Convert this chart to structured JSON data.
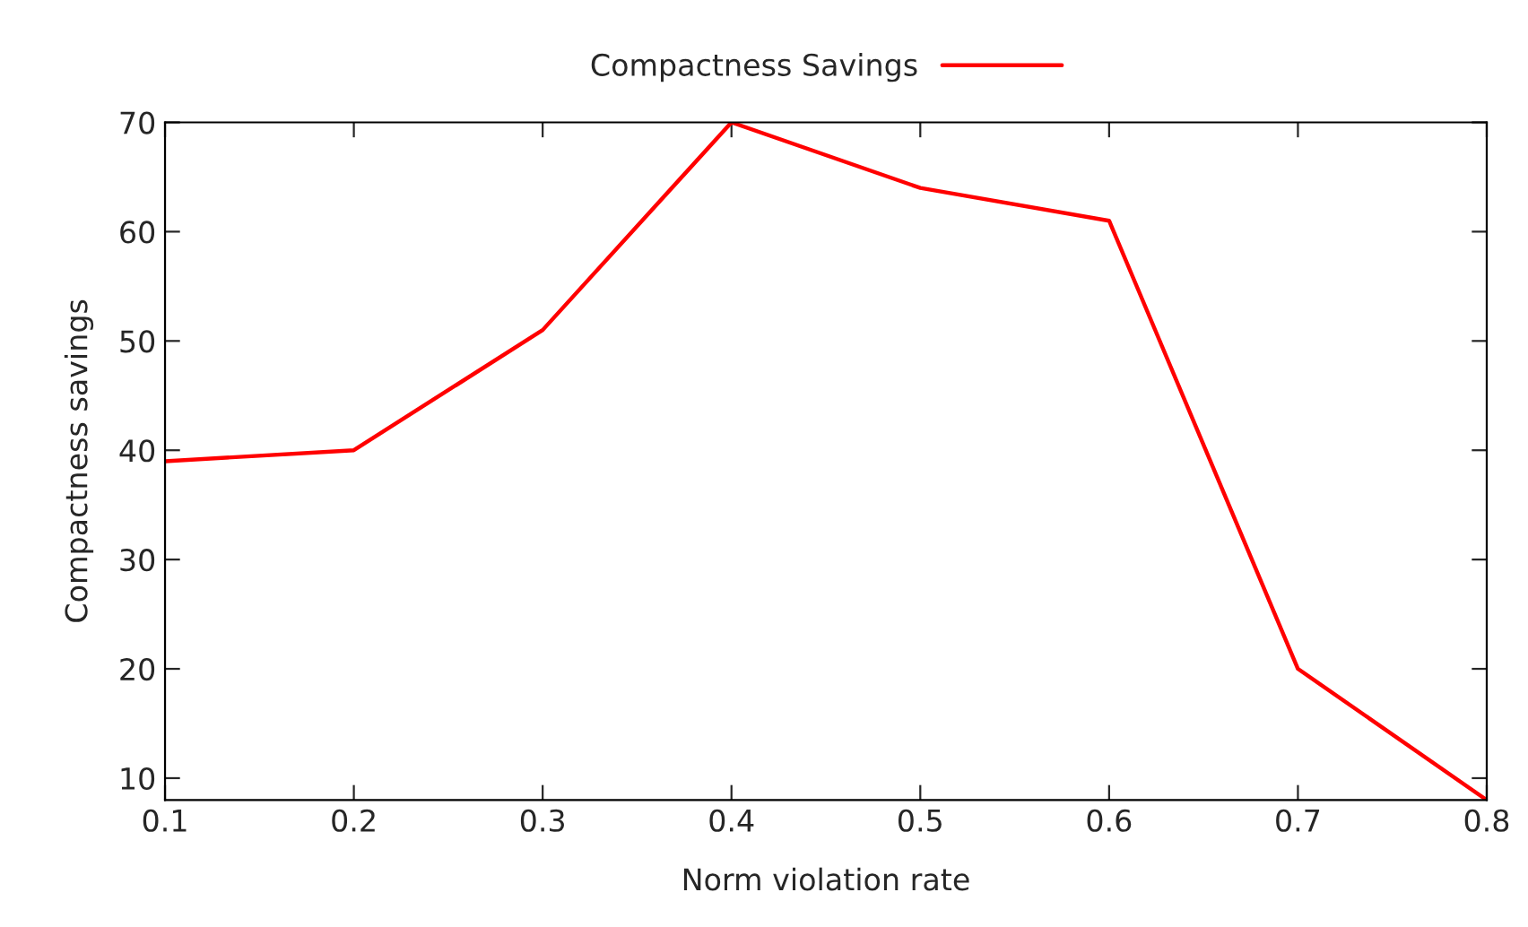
{
  "chart_data": {
    "type": "line",
    "xlabel": "Norm violation rate",
    "ylabel": "Compactness savings",
    "x": [
      0.1,
      0.2,
      0.3,
      0.4,
      0.5,
      0.6,
      0.7,
      0.8
    ],
    "series": [
      {
        "name": "Compactness Savings",
        "color": "#ff0000",
        "values": [
          39,
          40,
          51,
          70,
          64,
          61,
          20,
          8
        ]
      }
    ],
    "xlim": [
      0.1,
      0.8
    ],
    "xticks": [
      0.1,
      0.2,
      0.3,
      0.4,
      0.5,
      0.6,
      0.7,
      0.8
    ],
    "ylim": [
      8,
      70
    ],
    "yticks": [
      10,
      20,
      30,
      40,
      50,
      60,
      70
    ],
    "grid": false,
    "legend": "top",
    "marker": "none",
    "line_style": "solid"
  }
}
